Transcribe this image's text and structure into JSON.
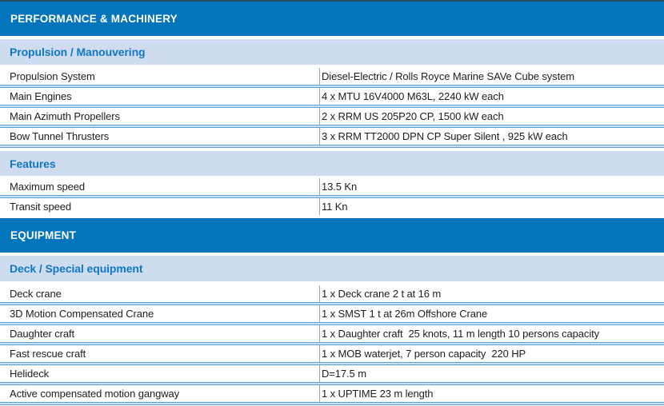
{
  "colors": {
    "header_bg": "#0474bc",
    "header_text": "#ffffff",
    "band_bg": "#cfdcf0",
    "band_text": "#0e78c4",
    "sep_edge": "#5d9ed2",
    "sep_mid": "#cbe2f4",
    "divider": "#98a6b4",
    "text": "#1d1d1b",
    "topline": "#2a4a63"
  },
  "table": {
    "performance_header": "PERFORMANCE & MACHINERY",
    "equipment_header": "EQUIPMENT",
    "propulsion": {
      "title": "Propulsion / Manouvering",
      "rows": [
        {
          "label": "Propulsion System",
          "value": "Diesel-Electric / Rolls Royce Marine SAVe Cube system"
        },
        {
          "label": "Main Engines",
          "value": "4 x MTU 16V4000 M63L, 2240 kW each"
        },
        {
          "label": "Main Azimuth Propellers",
          "value": "2 x RRM US 205P20 CP, 1500 kW each"
        },
        {
          "label": "Bow Tunnel Thrusters",
          "value": "3 x RRM TT2000 DPN CP Super Silent , 925 kW each"
        }
      ]
    },
    "features": {
      "title": "Features",
      "rows": [
        {
          "label": "Maximum speed",
          "value": "13.5 Kn"
        },
        {
          "label": "Transit speed",
          "value": "11 Kn"
        }
      ]
    },
    "deck": {
      "title": "Deck / Special equipment",
      "rows": [
        {
          "label": "Deck crane",
          "value": "1 x Deck crane 2 t at 16 m"
        },
        {
          "label": "3D Motion Compensated Crane",
          "value": "1 x SMST 1 t at 26m Offshore Crane"
        },
        {
          "label": "Daughter craft",
          "value": "1 x Daughter craft  25 knots, 11 m length 10 persons capacity"
        },
        {
          "label": "Fast rescue craft",
          "value": "1 x MOB waterjet, 7 person capacity  220 HP"
        },
        {
          "label": "Helideck",
          "value": "D=17.5 m"
        },
        {
          "label": "Active compensated motion gangway",
          "value": "1 x UPTIME 23 m length"
        }
      ]
    }
  }
}
